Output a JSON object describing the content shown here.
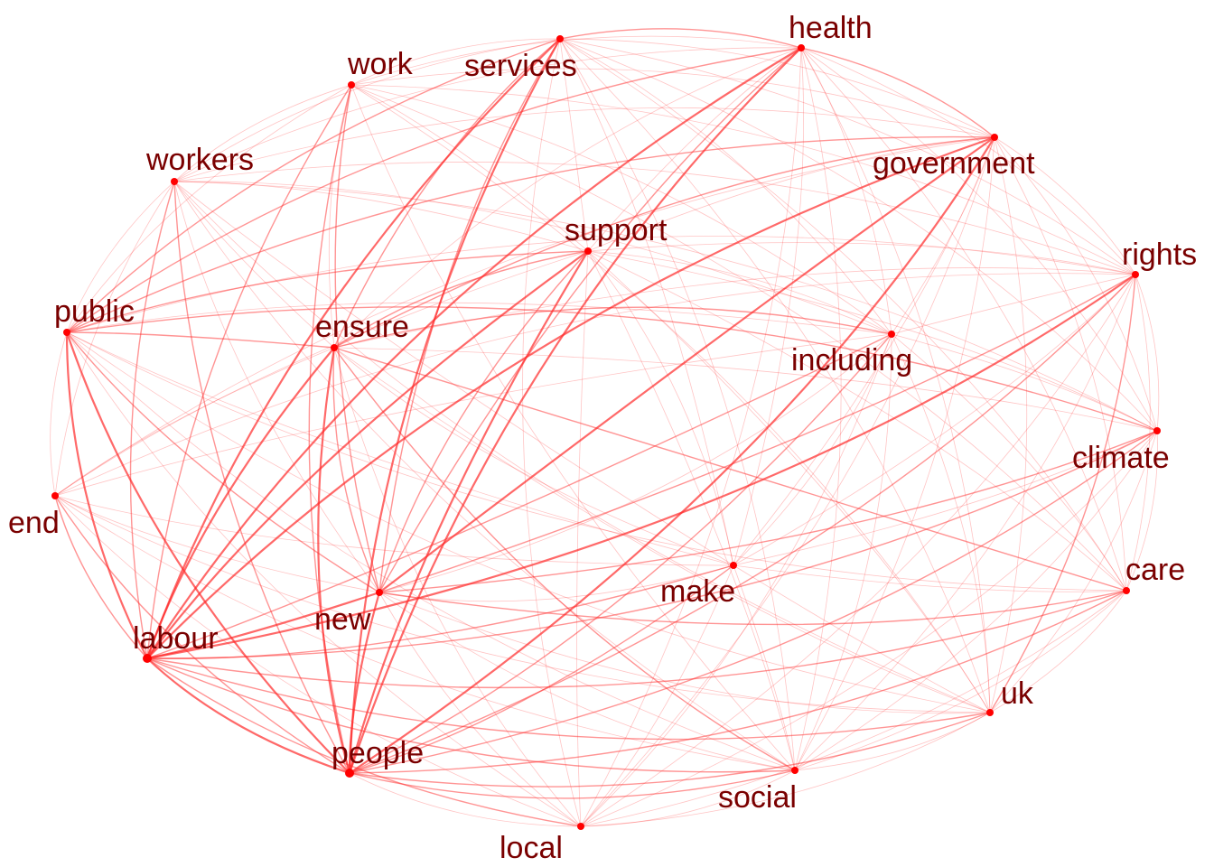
{
  "colors": {
    "edge": "#ff2a2a",
    "node": "#ff0000",
    "label": "#7a0000",
    "background": "#ffffff"
  },
  "nodes": [
    {
      "id": "labour",
      "label": "labour"
    },
    {
      "id": "people",
      "label": "people"
    },
    {
      "id": "new",
      "label": "new"
    },
    {
      "id": "ensure",
      "label": "ensure"
    },
    {
      "id": "public",
      "label": "public"
    },
    {
      "id": "workers",
      "label": "workers"
    },
    {
      "id": "work",
      "label": "work"
    },
    {
      "id": "services",
      "label": "services"
    },
    {
      "id": "health",
      "label": "health"
    },
    {
      "id": "government",
      "label": "government"
    },
    {
      "id": "support",
      "label": "support"
    },
    {
      "id": "including",
      "label": "including"
    },
    {
      "id": "rights",
      "label": "rights"
    },
    {
      "id": "climate",
      "label": "climate"
    },
    {
      "id": "care",
      "label": "care"
    },
    {
      "id": "uk",
      "label": "uk"
    },
    {
      "id": "social",
      "label": "social"
    },
    {
      "id": "local",
      "label": "local"
    },
    {
      "id": "make",
      "label": "make"
    },
    {
      "id": "end",
      "label": "end"
    }
  ],
  "edges": [
    [
      "labour",
      "people",
      3
    ],
    [
      "labour",
      "new",
      3
    ],
    [
      "labour",
      "ensure",
      3
    ],
    [
      "labour",
      "public",
      3
    ],
    [
      "labour",
      "workers",
      2
    ],
    [
      "labour",
      "work",
      2
    ],
    [
      "labour",
      "services",
      3
    ],
    [
      "labour",
      "health",
      3
    ],
    [
      "labour",
      "government",
      3
    ],
    [
      "labour",
      "support",
      3
    ],
    [
      "labour",
      "including",
      2
    ],
    [
      "labour",
      "rights",
      3
    ],
    [
      "labour",
      "climate",
      2
    ],
    [
      "labour",
      "care",
      2
    ],
    [
      "labour",
      "uk",
      2
    ],
    [
      "labour",
      "social",
      2
    ],
    [
      "labour",
      "local",
      2
    ],
    [
      "labour",
      "make",
      2
    ],
    [
      "labour",
      "end",
      2
    ],
    [
      "people",
      "new",
      3
    ],
    [
      "people",
      "ensure",
      3
    ],
    [
      "people",
      "public",
      3
    ],
    [
      "people",
      "workers",
      2
    ],
    [
      "people",
      "work",
      2
    ],
    [
      "people",
      "services",
      3
    ],
    [
      "people",
      "health",
      3
    ],
    [
      "people",
      "government",
      3
    ],
    [
      "people",
      "support",
      3
    ],
    [
      "people",
      "including",
      2
    ],
    [
      "people",
      "rights",
      2
    ],
    [
      "people",
      "climate",
      2
    ],
    [
      "people",
      "care",
      2
    ],
    [
      "people",
      "uk",
      2
    ],
    [
      "people",
      "social",
      2
    ],
    [
      "people",
      "local",
      1
    ],
    [
      "people",
      "make",
      2
    ],
    [
      "people",
      "end",
      2
    ],
    [
      "new",
      "ensure",
      2
    ],
    [
      "new",
      "public",
      2
    ],
    [
      "new",
      "workers",
      1
    ],
    [
      "new",
      "work",
      2
    ],
    [
      "new",
      "services",
      2
    ],
    [
      "new",
      "health",
      2
    ],
    [
      "new",
      "government",
      3
    ],
    [
      "new",
      "support",
      2
    ],
    [
      "new",
      "including",
      1
    ],
    [
      "new",
      "rights",
      2
    ],
    [
      "new",
      "climate",
      2
    ],
    [
      "new",
      "care",
      2
    ],
    [
      "new",
      "uk",
      1
    ],
    [
      "new",
      "social",
      1
    ],
    [
      "new",
      "local",
      1
    ],
    [
      "new",
      "make",
      1
    ],
    [
      "new",
      "end",
      1
    ],
    [
      "ensure",
      "public",
      2
    ],
    [
      "ensure",
      "workers",
      1
    ],
    [
      "ensure",
      "work",
      1
    ],
    [
      "ensure",
      "services",
      2
    ],
    [
      "ensure",
      "health",
      1
    ],
    [
      "ensure",
      "government",
      2
    ],
    [
      "ensure",
      "support",
      2
    ],
    [
      "ensure",
      "including",
      2
    ],
    [
      "ensure",
      "rights",
      1
    ],
    [
      "ensure",
      "climate",
      1
    ],
    [
      "ensure",
      "care",
      2
    ],
    [
      "ensure",
      "uk",
      1
    ],
    [
      "ensure",
      "social",
      2
    ],
    [
      "ensure",
      "local",
      1
    ],
    [
      "ensure",
      "make",
      1
    ],
    [
      "ensure",
      "end",
      1
    ],
    [
      "public",
      "workers",
      1
    ],
    [
      "public",
      "work",
      1
    ],
    [
      "public",
      "services",
      2
    ],
    [
      "public",
      "health",
      2
    ],
    [
      "public",
      "government",
      2
    ],
    [
      "public",
      "support",
      2
    ],
    [
      "public",
      "including",
      1
    ],
    [
      "public",
      "rights",
      1
    ],
    [
      "public",
      "climate",
      2
    ],
    [
      "public",
      "care",
      1
    ],
    [
      "public",
      "uk",
      1
    ],
    [
      "public",
      "social",
      1
    ],
    [
      "public",
      "local",
      1
    ],
    [
      "public",
      "make",
      1
    ],
    [
      "public",
      "end",
      1
    ],
    [
      "workers",
      "work",
      1
    ],
    [
      "workers",
      "services",
      1
    ],
    [
      "workers",
      "health",
      1
    ],
    [
      "workers",
      "government",
      1
    ],
    [
      "workers",
      "support",
      1
    ],
    [
      "workers",
      "including",
      1
    ],
    [
      "workers",
      "rights",
      1
    ],
    [
      "workers",
      "climate",
      1
    ],
    [
      "workers",
      "uk",
      1
    ],
    [
      "workers",
      "social",
      1
    ],
    [
      "workers",
      "make",
      1
    ],
    [
      "workers",
      "end",
      1
    ],
    [
      "work",
      "services",
      1
    ],
    [
      "work",
      "health",
      1
    ],
    [
      "work",
      "government",
      1
    ],
    [
      "work",
      "support",
      1
    ],
    [
      "work",
      "including",
      1
    ],
    [
      "work",
      "rights",
      1
    ],
    [
      "work",
      "care",
      1
    ],
    [
      "work",
      "uk",
      1
    ],
    [
      "work",
      "social",
      1
    ],
    [
      "services",
      "health",
      2
    ],
    [
      "services",
      "government",
      1
    ],
    [
      "services",
      "support",
      1
    ],
    [
      "services",
      "including",
      1
    ],
    [
      "services",
      "rights",
      1
    ],
    [
      "services",
      "climate",
      1
    ],
    [
      "services",
      "care",
      1
    ],
    [
      "services",
      "uk",
      1
    ],
    [
      "services",
      "social",
      1
    ],
    [
      "services",
      "local",
      1
    ],
    [
      "services",
      "make",
      1
    ],
    [
      "health",
      "government",
      2
    ],
    [
      "health",
      "support",
      1
    ],
    [
      "health",
      "including",
      1
    ],
    [
      "health",
      "rights",
      1
    ],
    [
      "health",
      "climate",
      1
    ],
    [
      "health",
      "care",
      1
    ],
    [
      "health",
      "uk",
      1
    ],
    [
      "health",
      "social",
      1
    ],
    [
      "health",
      "local",
      1
    ],
    [
      "health",
      "make",
      1
    ],
    [
      "government",
      "support",
      1
    ],
    [
      "government",
      "including",
      1
    ],
    [
      "government",
      "rights",
      1
    ],
    [
      "government",
      "climate",
      1
    ],
    [
      "government",
      "care",
      1
    ],
    [
      "government",
      "uk",
      1
    ],
    [
      "government",
      "social",
      1
    ],
    [
      "government",
      "local",
      1
    ],
    [
      "government",
      "make",
      1
    ],
    [
      "government",
      "end",
      1
    ],
    [
      "support",
      "including",
      1
    ],
    [
      "support",
      "rights",
      1
    ],
    [
      "support",
      "climate",
      1
    ],
    [
      "support",
      "care",
      1
    ],
    [
      "support",
      "uk",
      1
    ],
    [
      "support",
      "social",
      1
    ],
    [
      "support",
      "local",
      1
    ],
    [
      "support",
      "make",
      1
    ],
    [
      "support",
      "end",
      1
    ],
    [
      "including",
      "rights",
      1
    ],
    [
      "including",
      "climate",
      1
    ],
    [
      "including",
      "care",
      1
    ],
    [
      "including",
      "uk",
      1
    ],
    [
      "including",
      "social",
      1
    ],
    [
      "including",
      "local",
      1
    ],
    [
      "including",
      "make",
      1
    ],
    [
      "including",
      "end",
      1
    ],
    [
      "rights",
      "climate",
      1
    ],
    [
      "rights",
      "care",
      1
    ],
    [
      "rights",
      "uk",
      2
    ],
    [
      "rights",
      "social",
      1
    ],
    [
      "rights",
      "local",
      1
    ],
    [
      "rights",
      "make",
      1
    ],
    [
      "rights",
      "end",
      1
    ],
    [
      "climate",
      "care",
      1
    ],
    [
      "climate",
      "uk",
      1
    ],
    [
      "climate",
      "social",
      1
    ],
    [
      "climate",
      "local",
      1
    ],
    [
      "climate",
      "make",
      1
    ],
    [
      "care",
      "uk",
      1
    ],
    [
      "care",
      "social",
      1
    ],
    [
      "care",
      "local",
      1
    ],
    [
      "care",
      "make",
      1
    ],
    [
      "uk",
      "social",
      1
    ],
    [
      "uk",
      "local",
      1
    ],
    [
      "uk",
      "make",
      1
    ],
    [
      "uk",
      "end",
      1
    ],
    [
      "social",
      "local",
      1
    ],
    [
      "social",
      "make",
      1
    ],
    [
      "social",
      "end",
      1
    ],
    [
      "local",
      "make",
      1
    ],
    [
      "local",
      "end",
      1
    ],
    [
      "make",
      "end",
      1
    ]
  ]
}
